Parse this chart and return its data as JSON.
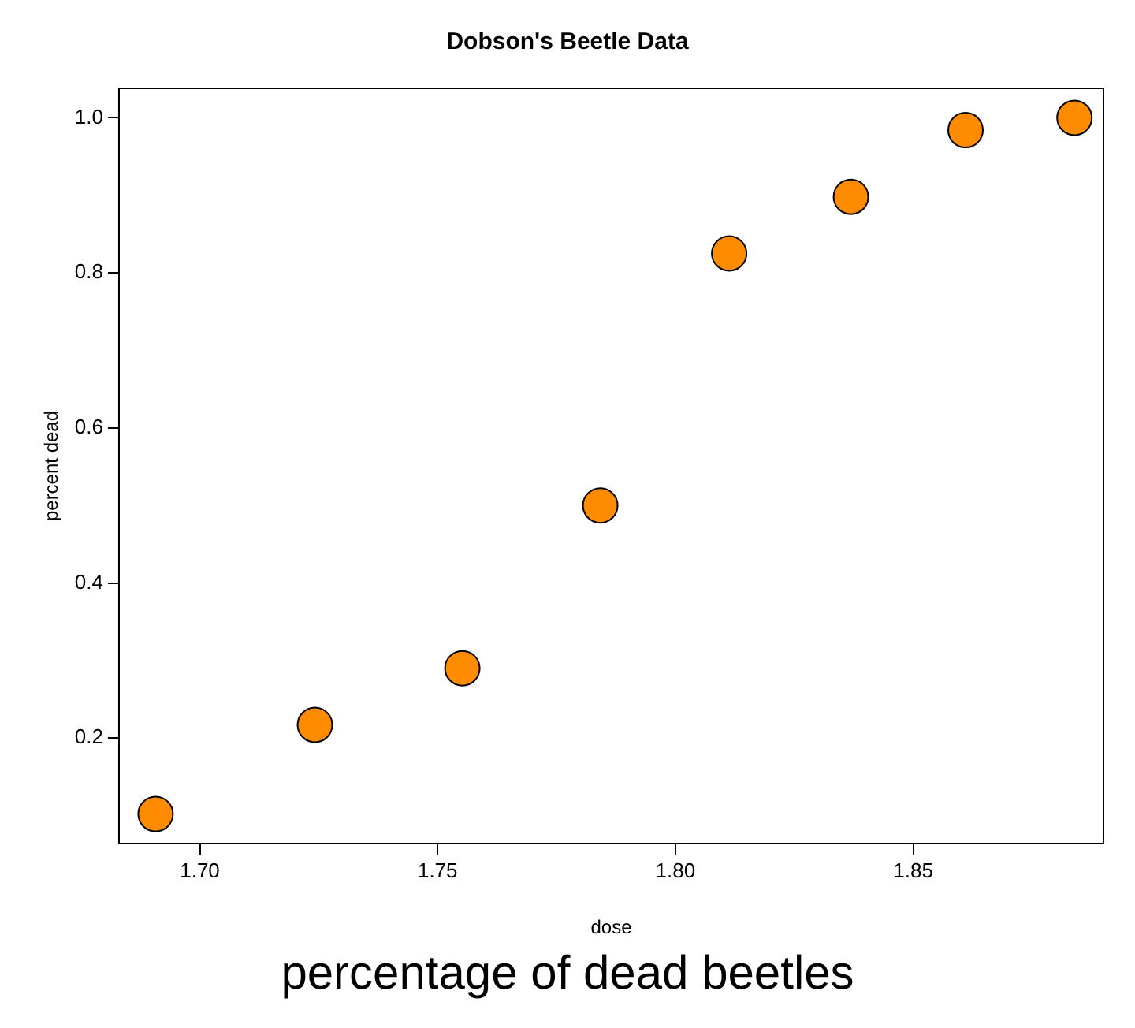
{
  "chart_data": {
    "type": "scatter",
    "title": "Dobson's Beetle Data",
    "xlabel": "dose",
    "ylabel": "percent dead",
    "x": [
      1.6907,
      1.7242,
      1.7552,
      1.7842,
      1.8113,
      1.8369,
      1.861,
      1.8839
    ],
    "values": [
      0.102,
      0.217,
      0.29,
      0.5,
      0.825,
      0.898,
      0.984,
      1.0
    ],
    "color": "#ff8c00",
    "marker": "circle",
    "grid": false,
    "legend": false,
    "xlim": [
      1.683,
      1.89
    ],
    "ylim": [
      0.064,
      1.038
    ],
    "xticks": [
      {
        "value": 1.7,
        "label": "1.70"
      },
      {
        "value": 1.75,
        "label": "1.75"
      },
      {
        "value": 1.8,
        "label": "1.80"
      },
      {
        "value": 1.85,
        "label": "1.85"
      }
    ],
    "yticks": [
      0.2,
      0.4,
      0.6,
      0.8,
      {
        "value": 1.0,
        "label": "1.0"
      }
    ],
    "annotations": [
      "percentage of dead beetles"
    ]
  }
}
